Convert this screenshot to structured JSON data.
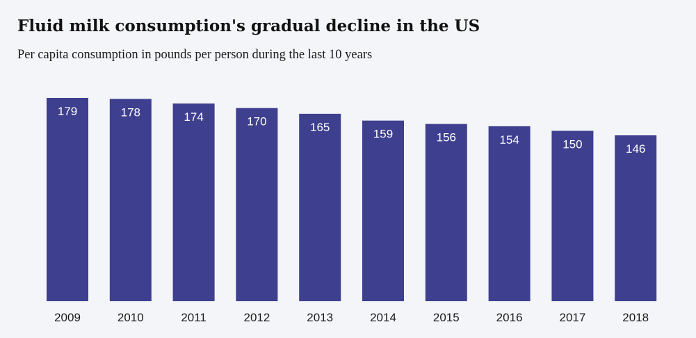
{
  "title": "Fluid milk consumption's gradual decline in the US",
  "subtitle": "Per capita consumption in pounds per person during the last 10 years",
  "colors": {
    "background": "#f4f5f8",
    "bar": "#3f3f8f",
    "bar_label": "#ffffff",
    "tick_label": "#1a1a1a"
  },
  "chart_data": {
    "type": "bar",
    "categories": [
      "2009",
      "2010",
      "2011",
      "2012",
      "2013",
      "2014",
      "2015",
      "2016",
      "2017",
      "2018"
    ],
    "values": [
      179,
      178,
      174,
      170,
      165,
      159,
      156,
      154,
      150,
      146
    ],
    "title": "Fluid milk consumption's gradual decline in the US",
    "subtitle": "Per capita consumption in pounds per person during the last 10 years",
    "xlabel": "",
    "ylabel": "",
    "ylim": [
      0,
      179
    ],
    "grid": false,
    "legend": "none",
    "data_labels": "inside-top"
  }
}
